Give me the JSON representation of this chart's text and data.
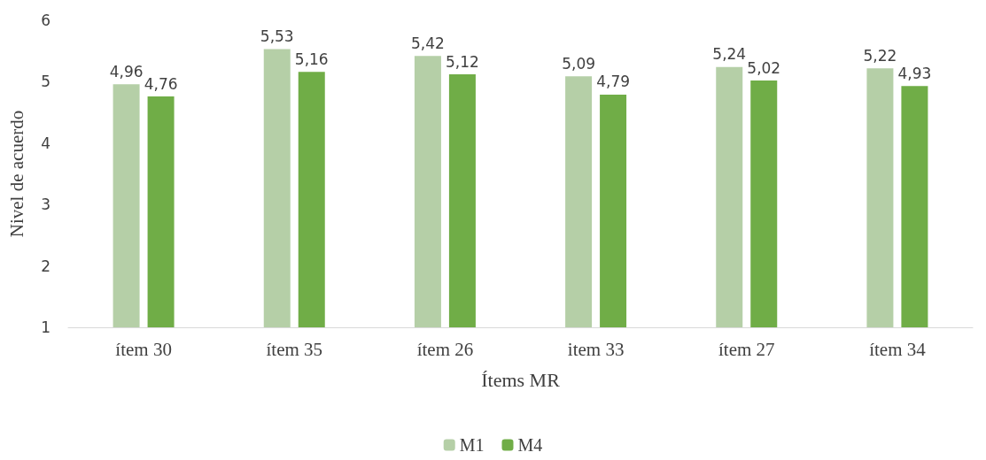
{
  "chart_data": {
    "type": "bar",
    "xlabel": "Ítems MR",
    "ylabel": "Nivel de acuerdo",
    "categories": [
      "ítem 30",
      "ítem 35",
      "ítem 26",
      "item 33",
      "ítem 27",
      "ítem 34"
    ],
    "series": [
      {
        "name": "M1",
        "color": "#b5cfa7",
        "values": [
          4.96,
          5.53,
          5.42,
          5.09,
          5.24,
          5.22
        ],
        "value_labels": [
          "4,96",
          "5,53",
          "5,42",
          "5,09",
          "5,24",
          "5,22"
        ]
      },
      {
        "name": "M4",
        "color": "#70ad47",
        "values": [
          4.76,
          5.16,
          5.12,
          4.79,
          5.02,
          4.93
        ],
        "value_labels": [
          "4,76",
          "5,16",
          "5,12",
          "4,79",
          "5,02",
          "4,93"
        ]
      }
    ],
    "ylim": [
      1,
      6
    ],
    "yticks": [
      1,
      2,
      3,
      4,
      5,
      6
    ],
    "grid": false,
    "legend": "bottom"
  }
}
